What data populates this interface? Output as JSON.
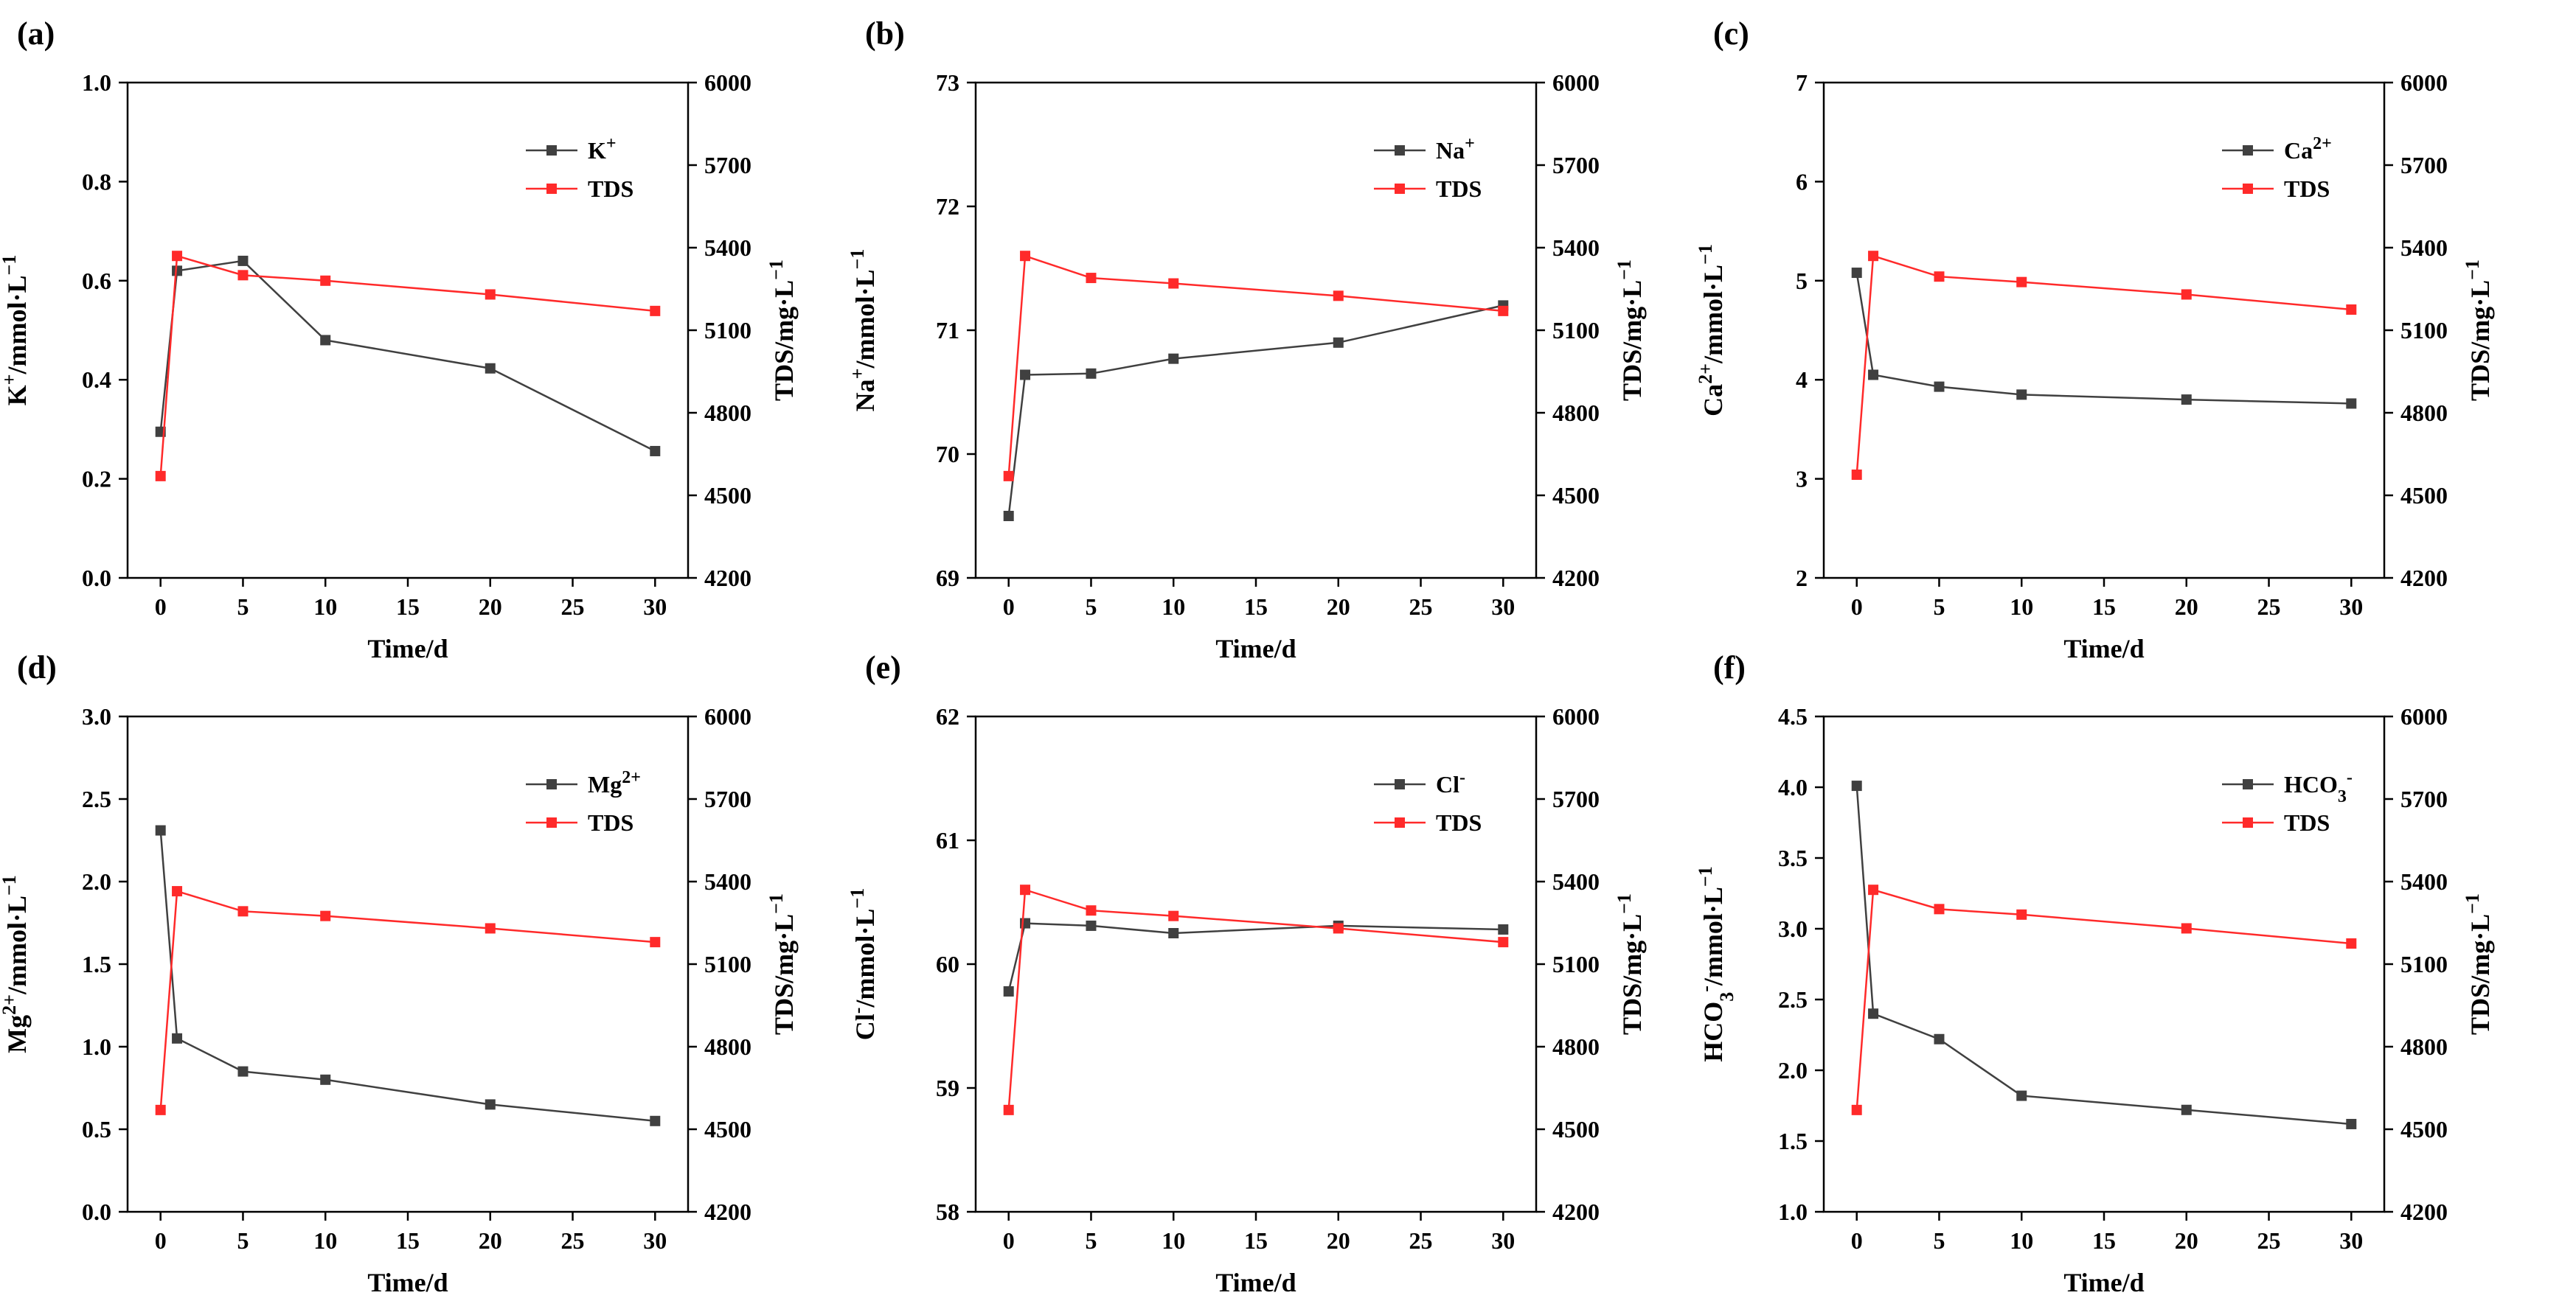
{
  "figure": {
    "background": "#ffffff",
    "ion_color": "#404040",
    "tds_color": "#ff2a2a"
  },
  "chart_data": [
    {
      "type": "line",
      "panel": "(a)",
      "x": [
        0,
        1,
        5,
        10,
        20,
        30
      ],
      "xlim": [
        -2,
        32
      ],
      "xticks": [
        0,
        5,
        10,
        15,
        20,
        25,
        30
      ],
      "xtick_labels": [
        "0",
        "5",
        "10",
        "15",
        "20",
        "25",
        "30"
      ],
      "xlabel": "Time/d",
      "ylim": [
        0,
        1.0
      ],
      "yticks": [
        0,
        0.2,
        0.4,
        0.6,
        0.8,
        1.0
      ],
      "ytick_labels": [
        "0.0",
        "0.2",
        "0.4",
        "0.6",
        "0.8",
        "1.0"
      ],
      "ylabel": {
        "base": "K",
        "sup": "+",
        "rest": "/mmol·L",
        "exp": "−1"
      },
      "y2lim": [
        4200,
        6000
      ],
      "y2ticks": [
        4200,
        4500,
        4800,
        5100,
        5400,
        5700,
        6000
      ],
      "y2tick_labels": [
        "4200",
        "4500",
        "4800",
        "5100",
        "5400",
        "5700",
        "6000"
      ],
      "y2label": "TDS/mg·L",
      "y2label_exp": "−1",
      "series": [
        {
          "name": "K",
          "name_sup": "+",
          "name_sub": "",
          "axis": "left",
          "color": "#404040",
          "values": [
            0.295,
            0.62,
            0.64,
            0.48,
            0.423,
            0.256
          ]
        },
        {
          "name": "TDS",
          "name_sup": "",
          "name_sub": "",
          "axis": "right",
          "color": "#ff2a2a",
          "values": [
            4570,
            5370,
            5300,
            5280,
            5230,
            5170
          ]
        }
      ]
    },
    {
      "type": "line",
      "panel": "(b)",
      "x": [
        0,
        1,
        5,
        10,
        20,
        30
      ],
      "xlim": [
        -2,
        32
      ],
      "xticks": [
        0,
        5,
        10,
        15,
        20,
        25,
        30
      ],
      "xtick_labels": [
        "0",
        "5",
        "10",
        "15",
        "20",
        "25",
        "30"
      ],
      "xlabel": "Time/d",
      "ylim": [
        69,
        73
      ],
      "yticks": [
        69,
        70,
        71,
        72,
        73
      ],
      "ytick_labels": [
        "69",
        "70",
        "71",
        "72",
        "73"
      ],
      "ylabel": {
        "base": "Na",
        "sup": "+",
        "rest": "/mmol·L",
        "exp": "−1"
      },
      "y2lim": [
        4200,
        6000
      ],
      "y2ticks": [
        4200,
        4500,
        4800,
        5100,
        5400,
        5700,
        6000
      ],
      "y2tick_labels": [
        "4200",
        "4500",
        "4800",
        "5100",
        "5400",
        "5700",
        "6000"
      ],
      "y2label": "TDS/mg·L",
      "y2label_exp": "−1",
      "series": [
        {
          "name": "Na",
          "name_sup": "+",
          "name_sub": "",
          "axis": "left",
          "color": "#404040",
          "values": [
            69.5,
            70.64,
            70.65,
            70.77,
            70.9,
            71.2
          ]
        },
        {
          "name": "TDS",
          "name_sup": "",
          "name_sub": "",
          "axis": "right",
          "color": "#ff2a2a",
          "values": [
            4570,
            5370,
            5290,
            5270,
            5225,
            5170
          ]
        }
      ]
    },
    {
      "type": "line",
      "panel": "(c)",
      "x": [
        0,
        1,
        5,
        10,
        20,
        30
      ],
      "xlim": [
        -2,
        32
      ],
      "xticks": [
        0,
        5,
        10,
        15,
        20,
        25,
        30
      ],
      "xtick_labels": [
        "0",
        "5",
        "10",
        "15",
        "20",
        "25",
        "30"
      ],
      "xlabel": "Time/d",
      "ylim": [
        2,
        7
      ],
      "yticks": [
        2,
        3,
        4,
        5,
        6,
        7
      ],
      "ytick_labels": [
        "2",
        "3",
        "4",
        "5",
        "6",
        "7"
      ],
      "ylabel": {
        "base": "Ca",
        "sup": "2+",
        "rest": "/mmol·L",
        "exp": "−1"
      },
      "y2lim": [
        4200,
        6000
      ],
      "y2ticks": [
        4200,
        4500,
        4800,
        5100,
        5400,
        5700,
        6000
      ],
      "y2tick_labels": [
        "4200",
        "4500",
        "4800",
        "5100",
        "5400",
        "5700",
        "6000"
      ],
      "y2label": "TDS/mg·L",
      "y2label_exp": "−1",
      "series": [
        {
          "name": "Ca",
          "name_sup": "2+",
          "name_sub": "",
          "axis": "left",
          "color": "#404040",
          "values": [
            5.08,
            4.05,
            3.93,
            3.85,
            3.8,
            3.76
          ]
        },
        {
          "name": "TDS",
          "name_sup": "",
          "name_sub": "",
          "axis": "right",
          "color": "#ff2a2a",
          "values": [
            4575,
            5370,
            5295,
            5275,
            5230,
            5175
          ]
        }
      ]
    },
    {
      "type": "line",
      "panel": "(d)",
      "x": [
        0,
        1,
        5,
        10,
        20,
        30
      ],
      "xlim": [
        -2,
        32
      ],
      "xticks": [
        0,
        5,
        10,
        15,
        20,
        25,
        30
      ],
      "xtick_labels": [
        "0",
        "5",
        "10",
        "15",
        "20",
        "25",
        "30"
      ],
      "xlabel": "Time/d",
      "ylim": [
        0,
        3.0
      ],
      "yticks": [
        0,
        0.5,
        1.0,
        1.5,
        2.0,
        2.5,
        3.0
      ],
      "ytick_labels": [
        "0.0",
        "0.5",
        "1.0",
        "1.5",
        "2.0",
        "2.5",
        "3.0"
      ],
      "ylabel": {
        "base": "Mg",
        "sup": "2+",
        "rest": "/mmol·L",
        "exp": "−1"
      },
      "y2lim": [
        4200,
        6000
      ],
      "y2ticks": [
        4200,
        4500,
        4800,
        5100,
        5400,
        5700,
        6000
      ],
      "y2tick_labels": [
        "4200",
        "4500",
        "4800",
        "5100",
        "5400",
        "5700",
        "6000"
      ],
      "y2label": "TDS/mg·L",
      "y2label_exp": "−1",
      "series": [
        {
          "name": "Mg",
          "name_sup": "2+",
          "name_sub": "",
          "axis": "left",
          "color": "#404040",
          "values": [
            2.31,
            1.05,
            0.85,
            0.8,
            0.65,
            0.55
          ]
        },
        {
          "name": "TDS",
          "name_sup": "",
          "name_sub": "",
          "axis": "right",
          "color": "#ff2a2a",
          "values": [
            4570,
            5365,
            5292,
            5275,
            5230,
            5180
          ]
        }
      ]
    },
    {
      "type": "line",
      "panel": "(e)",
      "x": [
        0,
        1,
        5,
        10,
        20,
        30
      ],
      "xlim": [
        -2,
        32
      ],
      "xticks": [
        0,
        5,
        10,
        15,
        20,
        25,
        30
      ],
      "xtick_labels": [
        "0",
        "5",
        "10",
        "15",
        "20",
        "25",
        "30"
      ],
      "xlabel": "Time/d",
      "ylim": [
        58,
        62
      ],
      "yticks": [
        58,
        59,
        60,
        61,
        62
      ],
      "ytick_labels": [
        "58",
        "59",
        "60",
        "61",
        "62"
      ],
      "ylabel": {
        "base": "Cl",
        "sup": "-",
        "rest": "/mmol·L",
        "exp": "−1"
      },
      "y2lim": [
        4200,
        6000
      ],
      "y2ticks": [
        4200,
        4500,
        4800,
        5100,
        5400,
        5700,
        6000
      ],
      "y2tick_labels": [
        "4200",
        "4500",
        "4800",
        "5100",
        "5400",
        "5700",
        "6000"
      ],
      "y2label": "TDS/mg·L",
      "y2label_exp": "−1",
      "series": [
        {
          "name": "Cl",
          "name_sup": "-",
          "name_sub": "",
          "axis": "left",
          "color": "#404040",
          "values": [
            59.78,
            60.33,
            60.31,
            60.25,
            60.31,
            60.28
          ]
        },
        {
          "name": "TDS",
          "name_sup": "",
          "name_sub": "",
          "axis": "right",
          "color": "#ff2a2a",
          "values": [
            4570,
            5370,
            5295,
            5275,
            5230,
            5180
          ]
        }
      ]
    },
    {
      "type": "line",
      "panel": "(f)",
      "x": [
        0,
        1,
        5,
        10,
        20,
        30
      ],
      "xlim": [
        -2,
        32
      ],
      "xticks": [
        0,
        5,
        10,
        15,
        20,
        25,
        30
      ],
      "xtick_labels": [
        "0",
        "5",
        "10",
        "15",
        "20",
        "25",
        "30"
      ],
      "xlabel": "Time/d",
      "ylim": [
        1.0,
        4.5
      ],
      "yticks": [
        1.0,
        1.5,
        2.0,
        2.5,
        3.0,
        3.5,
        4.0,
        4.5
      ],
      "ytick_labels": [
        "1.0",
        "1.5",
        "2.0",
        "2.5",
        "3.0",
        "3.5",
        "4.0",
        "4.5"
      ],
      "ylabel": {
        "base": "HCO",
        "sub": "3",
        "sup": "-",
        "rest": "/mmol·L",
        "exp": "−1"
      },
      "y2lim": [
        4200,
        6000
      ],
      "y2ticks": [
        4200,
        4500,
        4800,
        5100,
        5400,
        5700,
        6000
      ],
      "y2tick_labels": [
        "4200",
        "4500",
        "4800",
        "5100",
        "5400",
        "5700",
        "6000"
      ],
      "y2label": "TDS/mg·L",
      "y2label_exp": "−1",
      "series": [
        {
          "name": "HCO",
          "name_sup": "-",
          "name_sub": "3",
          "axis": "left",
          "color": "#404040",
          "values": [
            4.01,
            2.4,
            2.22,
            1.82,
            1.72,
            1.62
          ]
        },
        {
          "name": "TDS",
          "name_sup": "",
          "name_sub": "",
          "axis": "right",
          "color": "#ff2a2a",
          "values": [
            4570,
            5370,
            5300,
            5280,
            5230,
            5175
          ]
        }
      ]
    }
  ]
}
